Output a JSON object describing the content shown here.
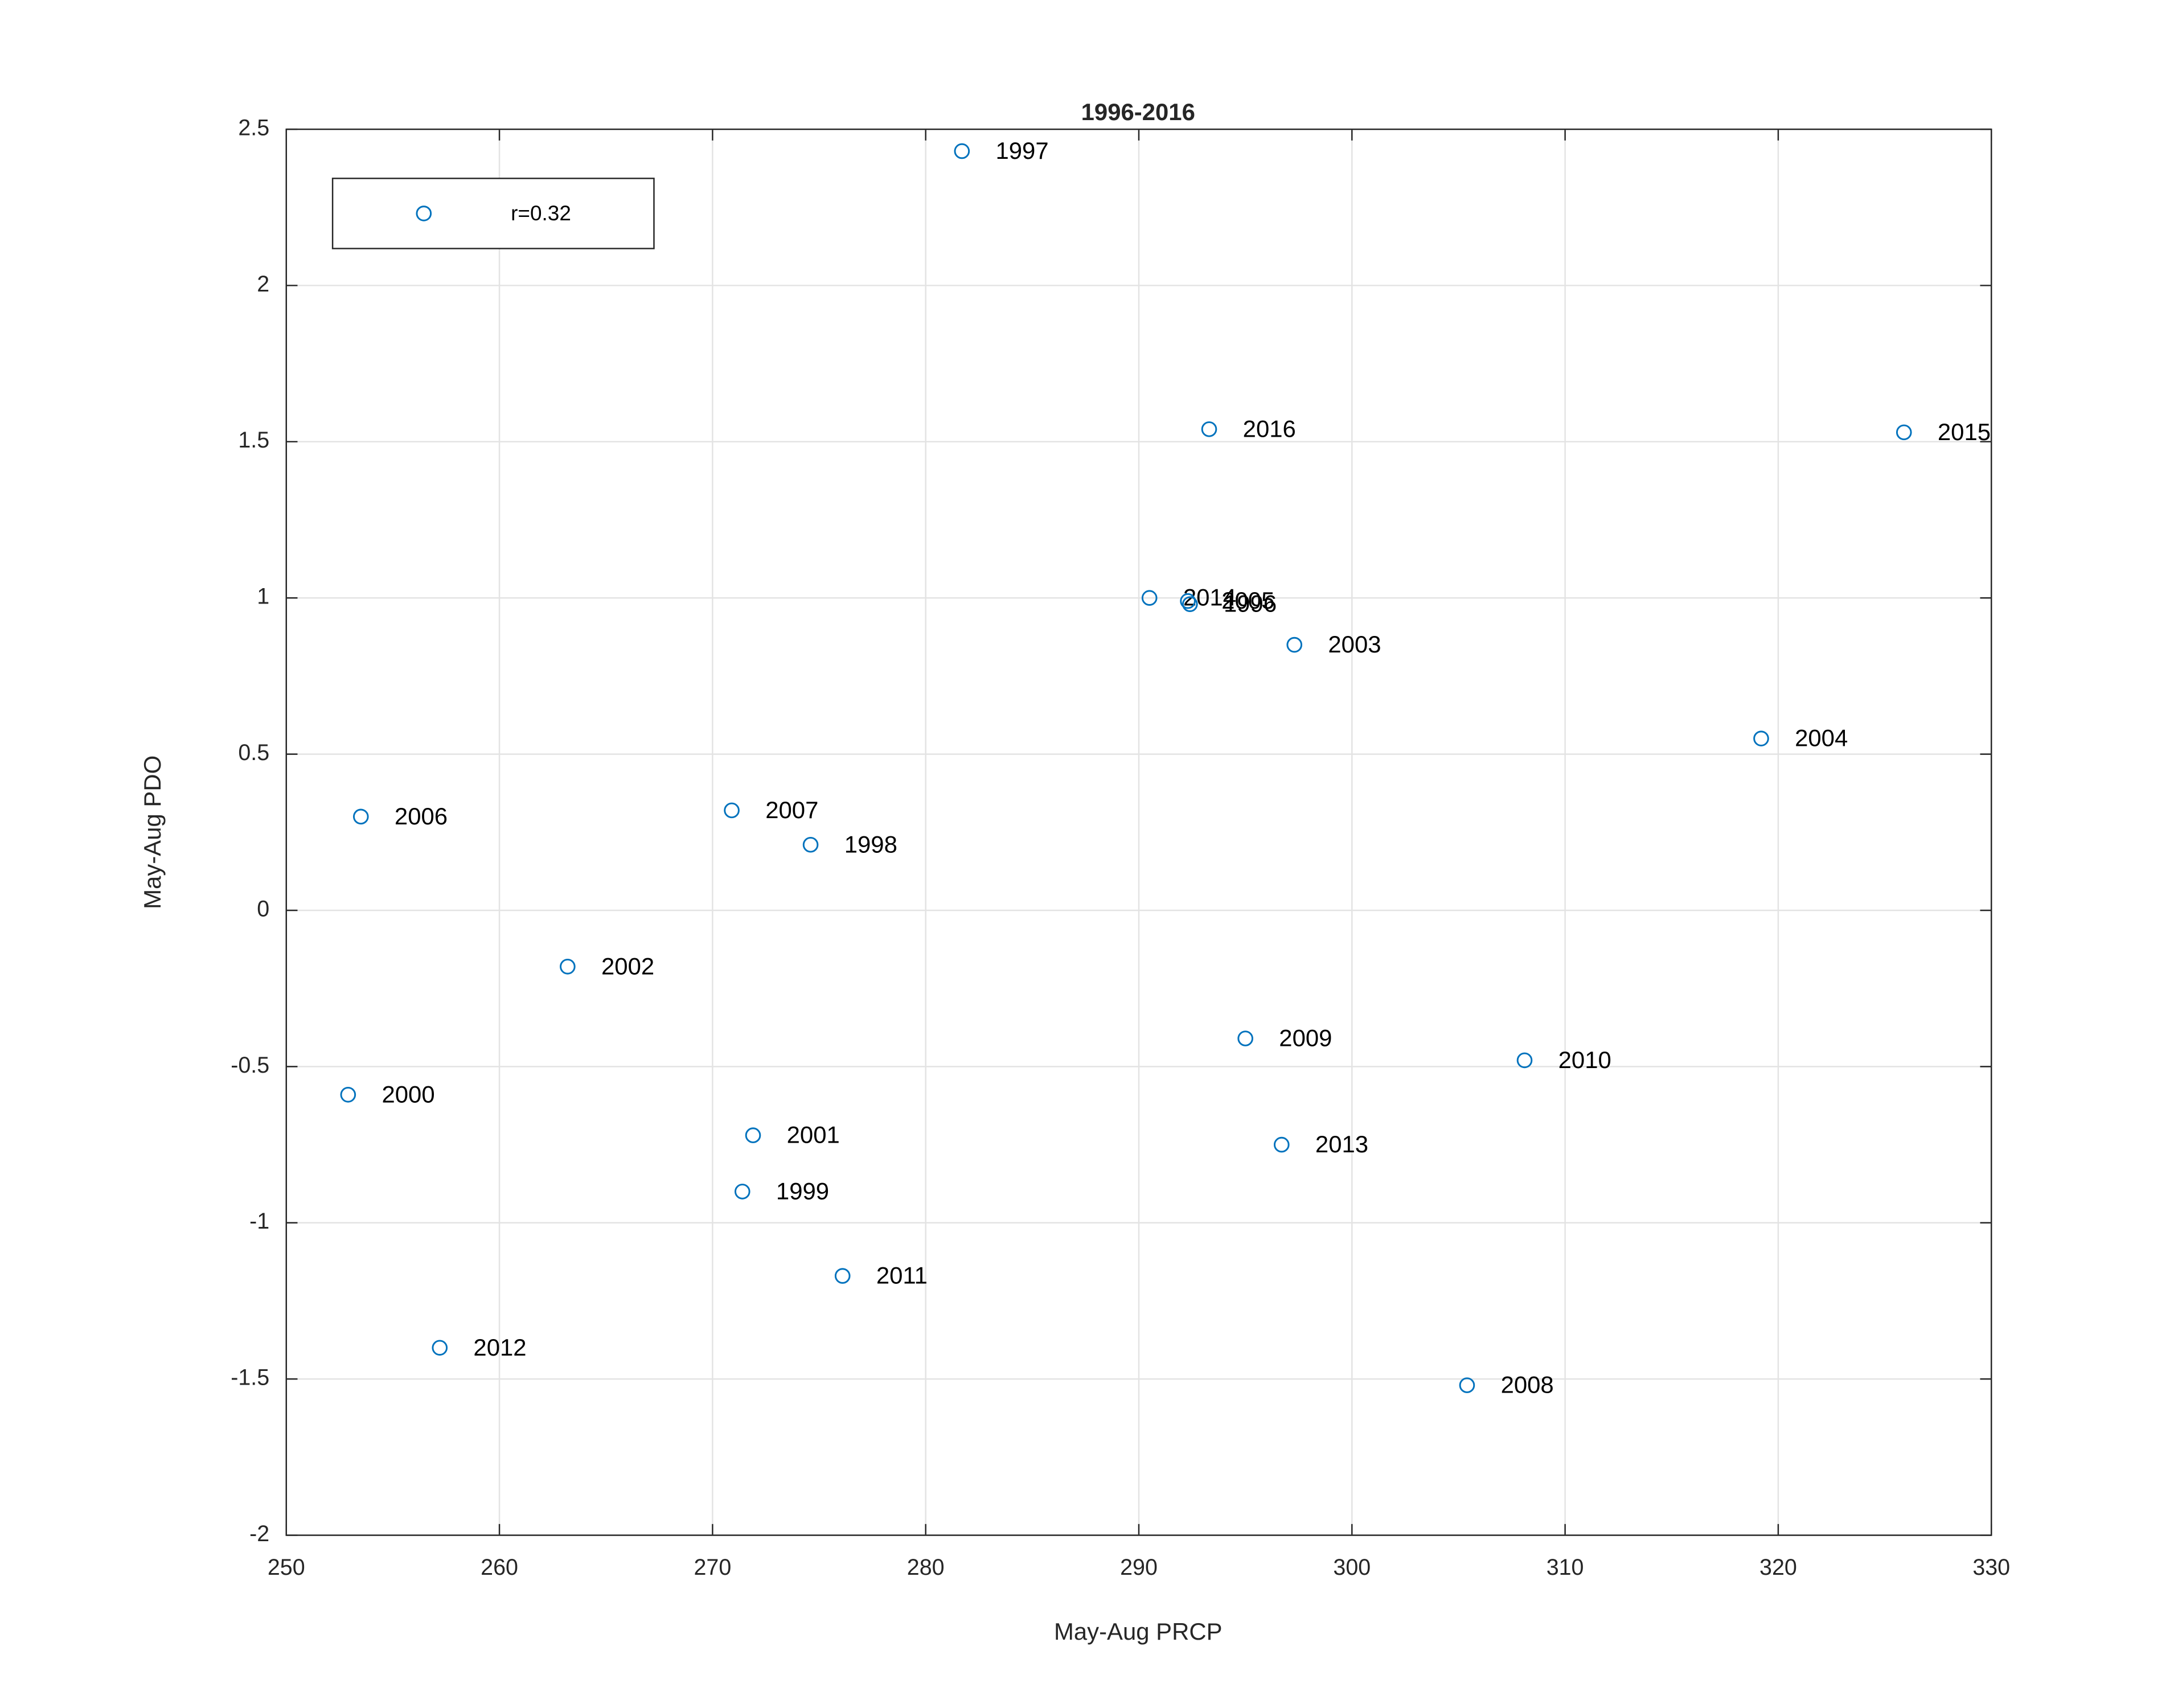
{
  "chart_data": {
    "type": "scatter",
    "title": "1996-2016",
    "x_label": "May-Aug PRCP",
    "y_label": "May-Aug PDO",
    "x": [
      281.7,
      293.3,
      325.9,
      290.5,
      292.3,
      292.4,
      297.3,
      319.2,
      253.5,
      270.9,
      274.6,
      263.2,
      295.0,
      308.1,
      252.9,
      271.9,
      296.7,
      271.4,
      276.1,
      257.2,
      305.4
    ],
    "labels": [
      "1997",
      "2016",
      "2015",
      "2014",
      "2005",
      "1996",
      "2003",
      "2004",
      "2006",
      "2007",
      "1998",
      "2002",
      "2009",
      "2010",
      "2000",
      "2001",
      "2013",
      "1999",
      "2011",
      "2012",
      "2008"
    ],
    "series": [
      {
        "name": "r=0.32",
        "color": "#0072bd",
        "values": [
          2.43,
          1.54,
          1.53,
          1.0,
          0.99,
          0.98,
          0.85,
          0.55,
          0.3,
          0.32,
          0.21,
          -0.18,
          -0.41,
          -0.48,
          -0.59,
          -0.72,
          -0.75,
          -0.9,
          -1.17,
          -1.4,
          -1.52
        ]
      }
    ],
    "xlim": [
      250,
      330
    ],
    "xticks": [
      250,
      260,
      270,
      280,
      290,
      300,
      310,
      320,
      330
    ],
    "ylim": [
      -2,
      2.5
    ],
    "yticks": [
      -2,
      -1.5,
      -1,
      -0.5,
      0,
      0.5,
      1,
      1.5,
      2,
      2.5
    ],
    "grid": true,
    "legend": "upper-left"
  }
}
